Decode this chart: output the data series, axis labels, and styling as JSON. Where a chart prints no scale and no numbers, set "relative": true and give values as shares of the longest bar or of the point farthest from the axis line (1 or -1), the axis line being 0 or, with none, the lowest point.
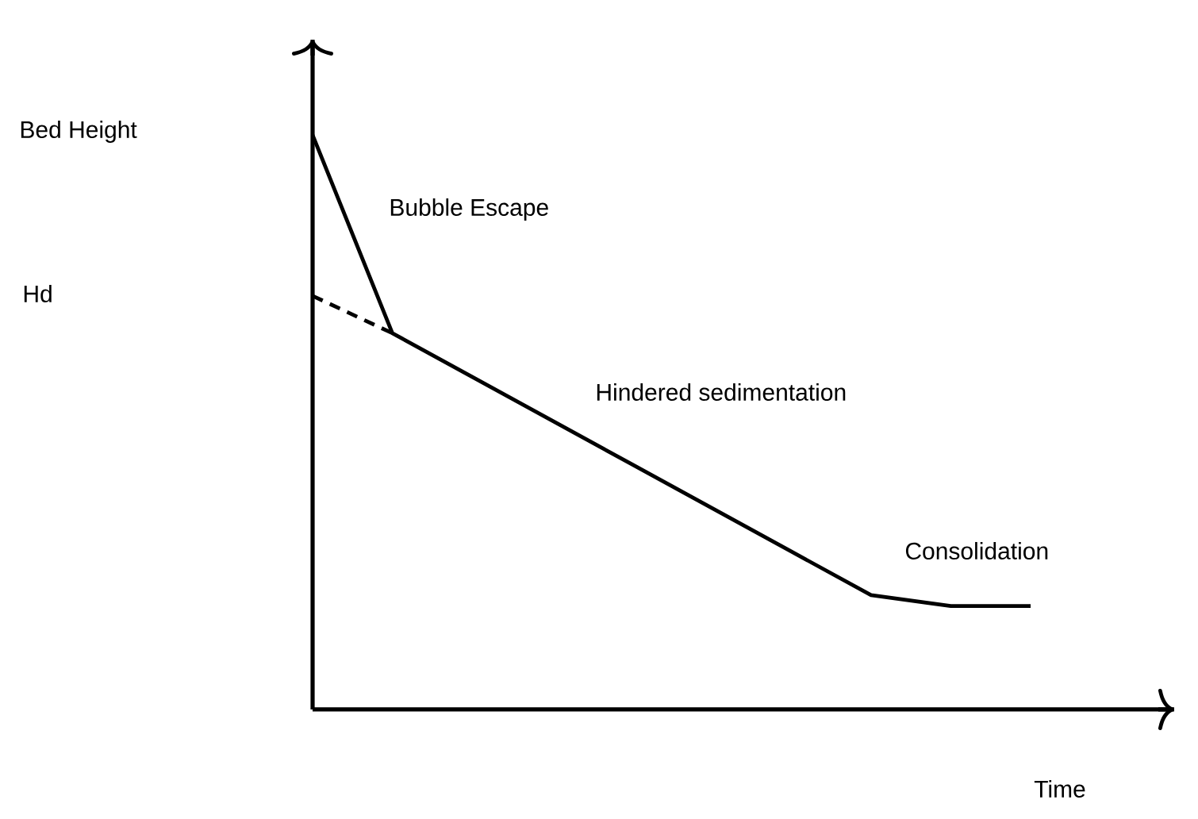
{
  "chart_data": {
    "type": "line",
    "relative": true,
    "xlabel": "Time",
    "marker": "none",
    "categories": [
      null,
      null,
      null,
      null,
      null,
      null,
      null,
      null,
      null,
      null
    ],
    "series": [
      {
        "color": "#000000",
        "values": [
          1,
          0.655,
          0.579,
          0.503,
          0.427,
          0.351,
          0.275,
          0.199,
          0.18,
          0.18
        ]
      },
      {
        "color": "#000000",
        "line_style": "dashed",
        "values": [
          0.72,
          0.655,
          null,
          null,
          null,
          null,
          null,
          null,
          null,
          null
        ]
      }
    ],
    "annotations": [
      "Bed Height",
      "Hd",
      "Bubble Escape",
      "Hindered sedimentation",
      "Consolidation"
    ]
  }
}
